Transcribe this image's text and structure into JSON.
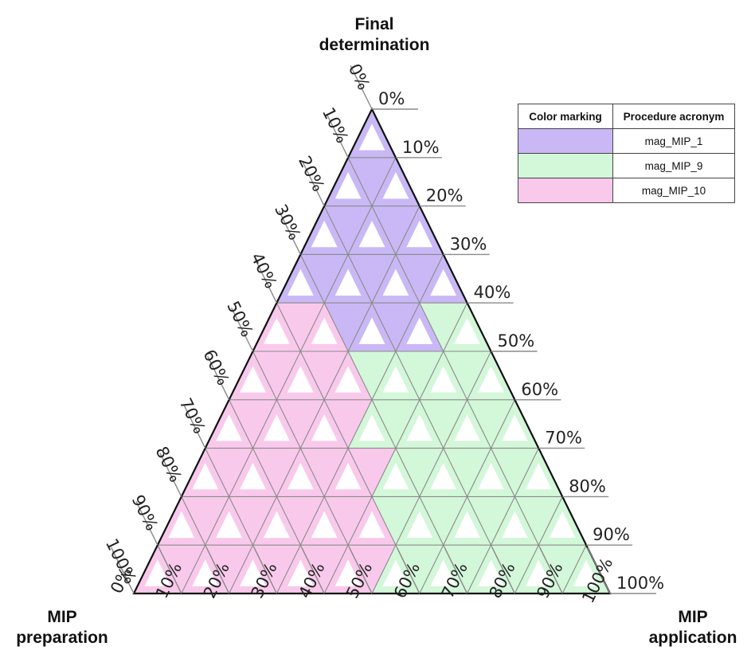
{
  "titles": {
    "top_line1": "Final",
    "top_line2": "determination",
    "left_line1": "MIP",
    "left_line2": "preparation",
    "right_line1": "MIP",
    "right_line2": "application"
  },
  "axes": {
    "top_ticks": [
      "100%",
      "90%",
      "80%",
      "70%",
      "60%",
      "50%",
      "40%",
      "30%",
      "20%",
      "10%",
      "0%"
    ],
    "left_ticks": [
      "0%",
      "10%",
      "20%",
      "30%",
      "40%",
      "50%",
      "60%",
      "70%",
      "80%",
      "90%",
      "100%"
    ],
    "bottom_ticks": [
      "0%",
      "10%",
      "20%",
      "30%",
      "40%",
      "50%",
      "60%",
      "70%",
      "80%",
      "90%",
      "100%"
    ]
  },
  "legend": {
    "header_color": "Color marking",
    "header_name": "Procedure acronym",
    "rows": [
      {
        "color": "#c9b8f5",
        "name": "mag_MIP_1"
      },
      {
        "color": "#d3f7d9",
        "name": "mag_MIP_9"
      },
      {
        "color": "#f9c9ec",
        "name": "mag_MIP_10"
      }
    ]
  },
  "colors": {
    "purple": "#c9b8f5",
    "green": "#d3f7d9",
    "pink": "#f9c9ec",
    "grid": "#8a8a8a",
    "outline": "#111111",
    "tick": "#8a8a8a"
  }
}
